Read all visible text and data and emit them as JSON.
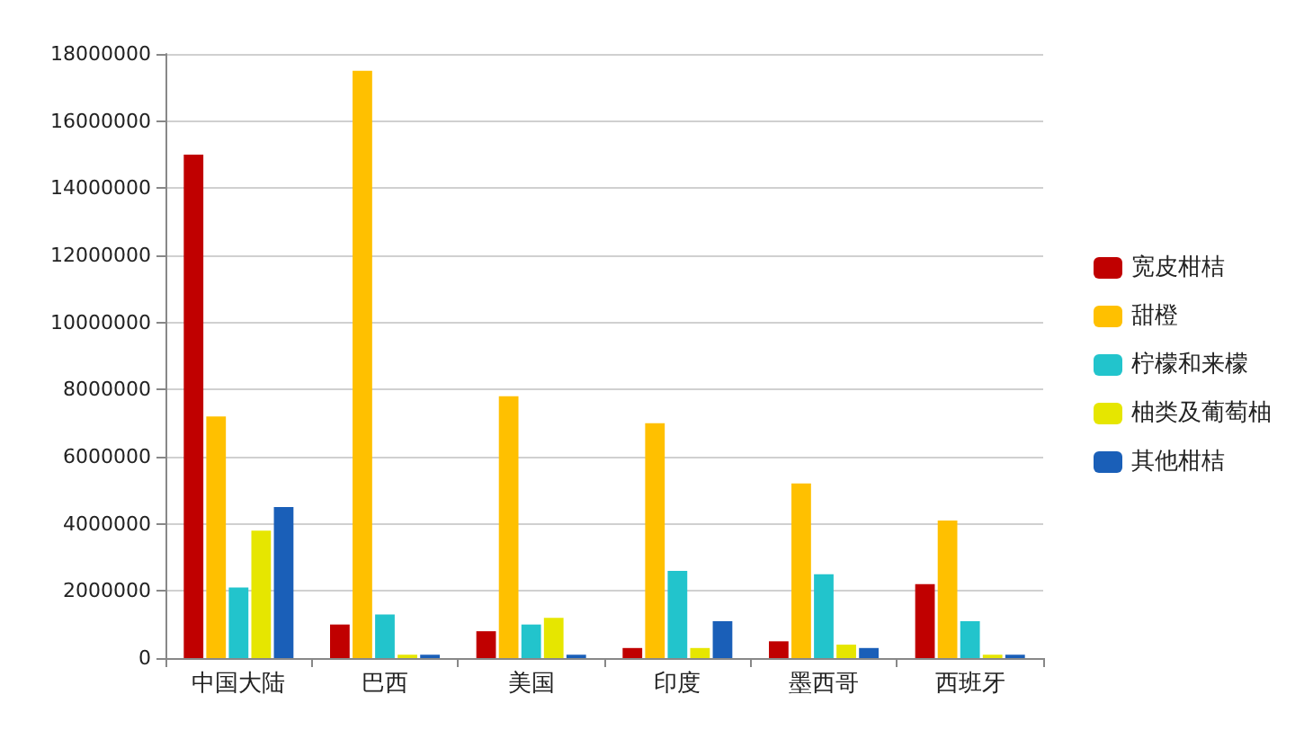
{
  "chart_data": {
    "type": "bar",
    "categories": [
      "中国大陆",
      "巴西",
      "美国",
      "印度",
      "墨西哥",
      "西班牙"
    ],
    "series": [
      {
        "name": "宽皮柑桔",
        "color": "#c00000",
        "values": [
          15000000,
          1000000,
          800000,
          300000,
          500000,
          2200000
        ]
      },
      {
        "name": "甜橙",
        "color": "#ffc000",
        "values": [
          7200000,
          17500000,
          7800000,
          7000000,
          5200000,
          4100000
        ]
      },
      {
        "name": "柠檬和来檬",
        "color": "#22c4cc",
        "values": [
          2100000,
          1300000,
          1000000,
          2600000,
          2500000,
          1100000
        ]
      },
      {
        "name": "柚类及葡萄柚",
        "color": "#e6e600",
        "values": [
          3800000,
          100000,
          1200000,
          300000,
          400000,
          100000
        ]
      },
      {
        "name": "其他柑桔",
        "color": "#1a5fb8",
        "values": [
          4500000,
          100000,
          100000,
          1100000,
          300000,
          100000
        ]
      }
    ],
    "ylim": [
      0,
      18000000
    ],
    "yticks": [
      0,
      2000000,
      4000000,
      6000000,
      8000000,
      10000000,
      12000000,
      14000000,
      16000000,
      18000000
    ],
    "grid": "y",
    "legend": "right"
  }
}
